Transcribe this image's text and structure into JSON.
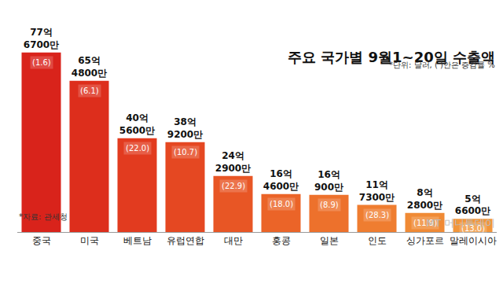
{
  "chart_data": {
    "type": "bar",
    "title": "주요 국가별 9월1~20일 수출액",
    "subtitle": "*단위: 달러, ( )안은 증감률 %",
    "source": "*자료: 관세청",
    "watermark": "MT 머니투데이",
    "categories": [
      "중국",
      "미국",
      "베트남",
      "유럽연합",
      "대만",
      "홍콩",
      "일본",
      "인도",
      "싱가포르",
      "말레이시아"
    ],
    "values": [
      7767000000,
      6548000000,
      4056000000,
      3892000000,
      2429000000,
      1646000000,
      1609000000,
      1173000000,
      828000000,
      566000000
    ],
    "value_labels": [
      "77억 6700만",
      "65억 4800만",
      "40억 5600만",
      "38억 9200만",
      "24억 2900만",
      "16억 4600만",
      "16억 900만",
      "11억 7300만",
      "8억 2800만",
      "5억 6600만"
    ],
    "growth_rates": {
      "values": [
        1.6,
        6.1,
        22.0,
        10.7,
        22.9,
        18.0,
        8.9,
        28.3,
        11.9,
        13.0
      ],
      "value_labels": [
        "(1.6)",
        "(6.1)",
        "(22.0)",
        "(10.7)",
        "(22.9)",
        "(18.0)",
        "(8.9)",
        "(28.3)",
        "(11.9)",
        "(13.0)"
      ]
    },
    "colors": [
      "#d9231b",
      "#dd2e1c",
      "#e23b1f",
      "#e54822",
      "#e85625",
      "#eb6428",
      "#ed712c",
      "#ef7d30",
      "#f08a35",
      "#f2963b"
    ],
    "ylim": [
      0,
      8000000000
    ],
    "yticks": [],
    "tick_labels": "x",
    "grid": false,
    "data_labels": true
  }
}
